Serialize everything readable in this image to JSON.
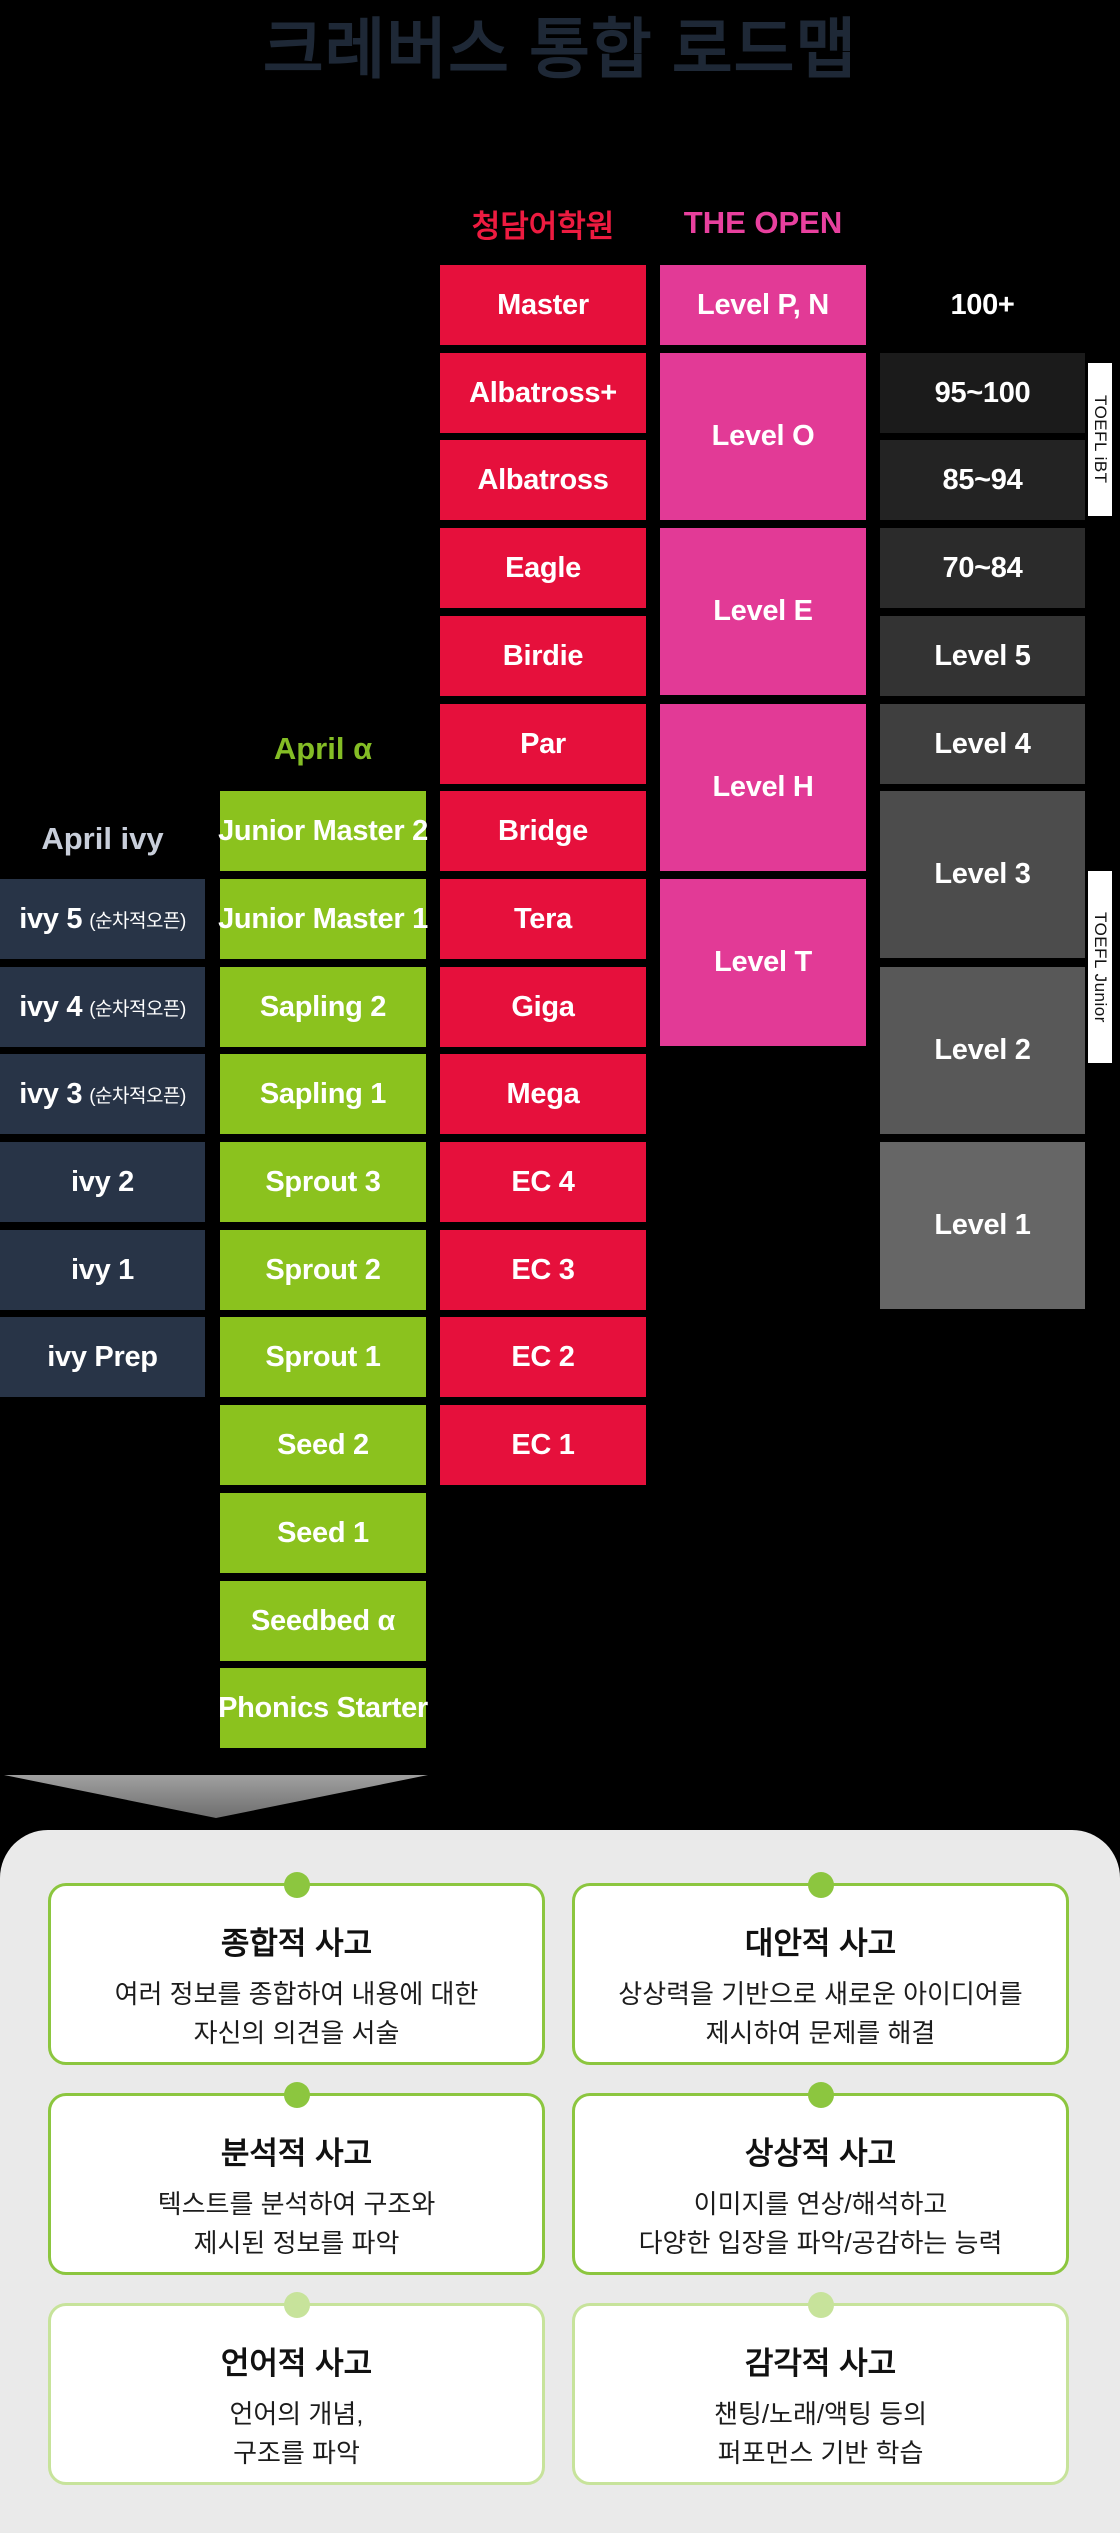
{
  "title": "크레버스 통합 로드맵",
  "headers": {
    "chungdam": "청담어학원",
    "the_open": "THE OPEN",
    "april_alpha": "April α",
    "april_ivy": "April ivy"
  },
  "colors": {
    "red": "#E6103C",
    "magenta": "#E23A96",
    "green": "#8BC21E",
    "navy": "#283447",
    "header_red": "#ED1B40",
    "header_magenta": "#E8409E",
    "header_green": "#84BD25",
    "header_ivy": "#C8CEDA",
    "title": "#1E2836",
    "panel_bg": "#EAEAEA",
    "accent_strong": "#8CC63F",
    "accent_soft": "#C7E39B"
  },
  "chungdam_levels": [
    "Master",
    "Albatross+",
    "Albatross",
    "Eagle",
    "Birdie",
    "Par",
    "Bridge",
    "Tera",
    "Giga",
    "Mega",
    "EC 4",
    "EC 3",
    "EC 2",
    "EC 1"
  ],
  "open_levels": [
    {
      "label": "Level P, N",
      "span": 1
    },
    {
      "label": "Level O",
      "span": 2
    },
    {
      "label": "Level E",
      "span": 2
    },
    {
      "label": "Level H",
      "span": 2
    },
    {
      "label": "Level T",
      "span": 2
    }
  ],
  "alpha_levels": [
    "Junior Master 2",
    "Junior Master 1",
    "Sapling 2",
    "Sapling 1",
    "Sprout 3",
    "Sprout 2",
    "Sprout 1",
    "Seed 2",
    "Seed 1",
    "Seedbed α",
    "Phonics Starter"
  ],
  "ivy_levels": [
    {
      "label": "ivy 5",
      "note": "(순차적오픈)"
    },
    {
      "label": "ivy 4",
      "note": "(순차적오픈)"
    },
    {
      "label": "ivy 3",
      "note": "(순차적오픈)"
    },
    {
      "label": "ivy 2",
      "note": ""
    },
    {
      "label": "ivy 1",
      "note": ""
    },
    {
      "label": "ivy Prep",
      "note": ""
    }
  ],
  "score_levels": [
    {
      "label": "100+",
      "span": 1,
      "bg": "transparent"
    },
    {
      "label": "95~100",
      "span": 1,
      "bg": "#1B1B1B"
    },
    {
      "label": "85~94",
      "span": 1,
      "bg": "#232323"
    },
    {
      "label": "70~84",
      "span": 1,
      "bg": "#2B2B2B"
    },
    {
      "label": "Level 5",
      "span": 1,
      "bg": "#333333"
    },
    {
      "label": "Level 4",
      "span": 1,
      "bg": "#3F3F3F"
    },
    {
      "label": "Level 3",
      "span": 2,
      "bg": "#4C4C4C"
    },
    {
      "label": "Level 2",
      "span": 2,
      "bg": "#585858"
    },
    {
      "label": "Level 1",
      "span": 2,
      "bg": "#666666"
    }
  ],
  "side_labels": {
    "toefl_ibt": "TOEFL iBT",
    "toefl_junior": "TOEFL Junior"
  },
  "cards": [
    {
      "title": "종합적 사고",
      "body": "여러 정보를 종합하여 내용에 대한\n자신의 의견을 서술",
      "accent": "strong"
    },
    {
      "title": "대안적 사고",
      "body": "상상력을 기반으로 새로운 아이디어를\n제시하여 문제를 해결",
      "accent": "strong"
    },
    {
      "title": "분석적 사고",
      "body": "텍스트를 분석하여 구조와\n제시된 정보를 파악",
      "accent": "strong"
    },
    {
      "title": "상상적 사고",
      "body": "이미지를 연상/해석하고\n다양한 입장을 파악/공감하는 능력",
      "accent": "strong"
    },
    {
      "title": "언어적 사고",
      "body": "언어의 개념,\n구조를 파악",
      "accent": "soft"
    },
    {
      "title": "감각적 사고",
      "body": "챈팅/노래/액팅 등의\n퍼포먼스 기반 학습",
      "accent": "soft"
    }
  ]
}
